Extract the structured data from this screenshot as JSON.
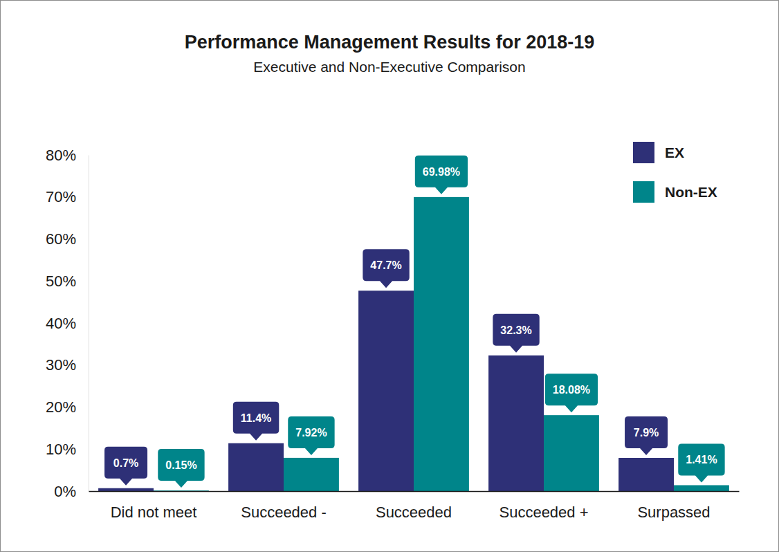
{
  "chart_data": {
    "type": "bar",
    "title": "Performance Management Results for 2018-19",
    "subtitle": "Executive and Non-Executive Comparison",
    "categories": [
      "Did not meet",
      "Succeeded -",
      "Succeeded",
      "Succeeded +",
      "Surpassed"
    ],
    "series": [
      {
        "name": "EX",
        "color": "#2e3077",
        "values": [
          0.7,
          11.4,
          47.7,
          32.3,
          7.9
        ],
        "value_labels": [
          "0.7%",
          "11.4%",
          "47.7%",
          "32.3%",
          "7.9%"
        ]
      },
      {
        "name": "Non-EX",
        "color": "#00858a",
        "values": [
          0.15,
          7.92,
          69.98,
          18.08,
          1.41
        ],
        "value_labels": [
          "0.15%",
          "7.92%",
          "69.98%",
          "18.08%",
          "1.41%"
        ]
      }
    ],
    "ylim": [
      0,
      80
    ],
    "yticks": [
      {
        "value": 0,
        "label": "0%"
      },
      {
        "value": 10,
        "label": "10%"
      },
      {
        "value": 20,
        "label": "20%"
      },
      {
        "value": 30,
        "label": "30%"
      },
      {
        "value": 40,
        "label": "40%"
      },
      {
        "value": 50,
        "label": "50%"
      },
      {
        "value": 60,
        "label": "60%"
      },
      {
        "value": 70,
        "label": "70%"
      },
      {
        "value": 80,
        "label": "80%"
      }
    ],
    "grid": false,
    "legend": "top-right",
    "data_labels": true
  }
}
